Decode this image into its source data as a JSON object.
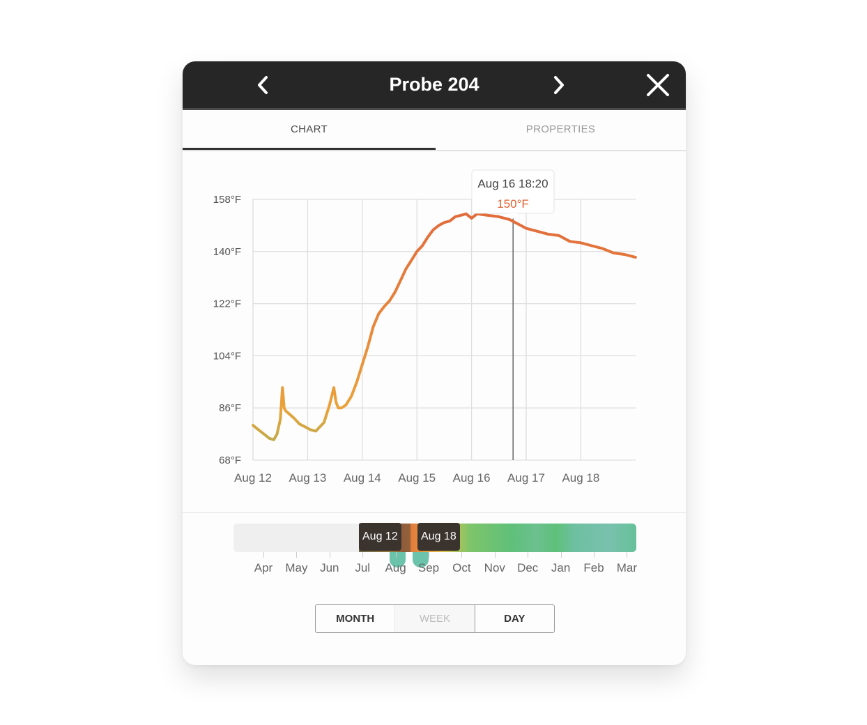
{
  "header": {
    "title": "Probe 204",
    "prev_icon": "chevron-left-icon",
    "next_icon": "chevron-right-icon",
    "close_icon": "close-icon"
  },
  "tabs": [
    {
      "label": "CHART",
      "active": true
    },
    {
      "label": "PROPERTIES",
      "active": false
    }
  ],
  "tooltip": {
    "time": "Aug 16 18:20",
    "value": "150°F",
    "value_color": "#e0602e"
  },
  "range_selector": {
    "start_label": "Aug 12",
    "end_label": "Aug 18",
    "months": [
      "Apr",
      "May",
      "Jun",
      "Jul",
      "Aug",
      "Sep",
      "Oct",
      "Nov",
      "Dec",
      "Jan",
      "Feb",
      "Mar"
    ],
    "handle_color": "#6cc3ab"
  },
  "zoom": {
    "buttons": [
      "MONTH",
      "WEEK",
      "DAY"
    ],
    "selected": "DAY"
  },
  "chart_data": {
    "type": "line",
    "title": "",
    "xlabel": "",
    "ylabel": "",
    "x_ticks": [
      "Aug 12",
      "Aug 13",
      "Aug 14",
      "Aug 15",
      "Aug 16",
      "Aug 17",
      "Aug 18"
    ],
    "y_ticks": [
      "68°F",
      "86°F",
      "104°F",
      "122°F",
      "140°F",
      "158°F"
    ],
    "ylim": [
      68,
      158
    ],
    "xlim": [
      0,
      7
    ],
    "grid": true,
    "line_colors": {
      "low": "#a9b057",
      "mid": "#eaa23a",
      "high": "#e0683c"
    },
    "cursor_x": 4.76,
    "series": [
      {
        "x": [
          0,
          0.1,
          0.2,
          0.3,
          0.38,
          0.44,
          0.5,
          0.54,
          0.57,
          0.6,
          0.66,
          0.75,
          0.85,
          0.95,
          1.05,
          1.15,
          1.3,
          1.4,
          1.48,
          1.52,
          1.56,
          1.62,
          1.7,
          1.8,
          1.9,
          2.0,
          2.1,
          2.2,
          2.3,
          2.4,
          2.5,
          2.6,
          2.7,
          2.8,
          2.9,
          3.0,
          3.1,
          3.2,
          3.3,
          3.4,
          3.5,
          3.6,
          3.7,
          3.8,
          3.9,
          4.0,
          4.1,
          4.3,
          4.5,
          4.7,
          4.8,
          4.9,
          5.0,
          5.2,
          5.4,
          5.6,
          5.8,
          6.0,
          6.2,
          6.4,
          6.6,
          6.8,
          7.0
        ],
        "values": [
          80,
          78.5,
          77,
          75.5,
          75,
          77,
          82,
          93,
          86,
          85,
          84,
          82.5,
          80.5,
          79.5,
          78.5,
          78,
          81,
          87,
          93,
          88,
          86,
          86,
          87,
          90,
          95,
          101,
          107,
          114,
          118.5,
          121,
          123,
          126,
          130,
          134,
          137,
          140,
          142,
          145,
          147.5,
          149,
          150,
          150.5,
          152,
          152.5,
          153,
          151.5,
          153,
          152.5,
          152,
          151,
          150,
          149,
          148,
          147,
          146,
          145.5,
          143.5,
          143,
          142,
          141,
          139.5,
          139,
          138
        ]
      }
    ]
  }
}
